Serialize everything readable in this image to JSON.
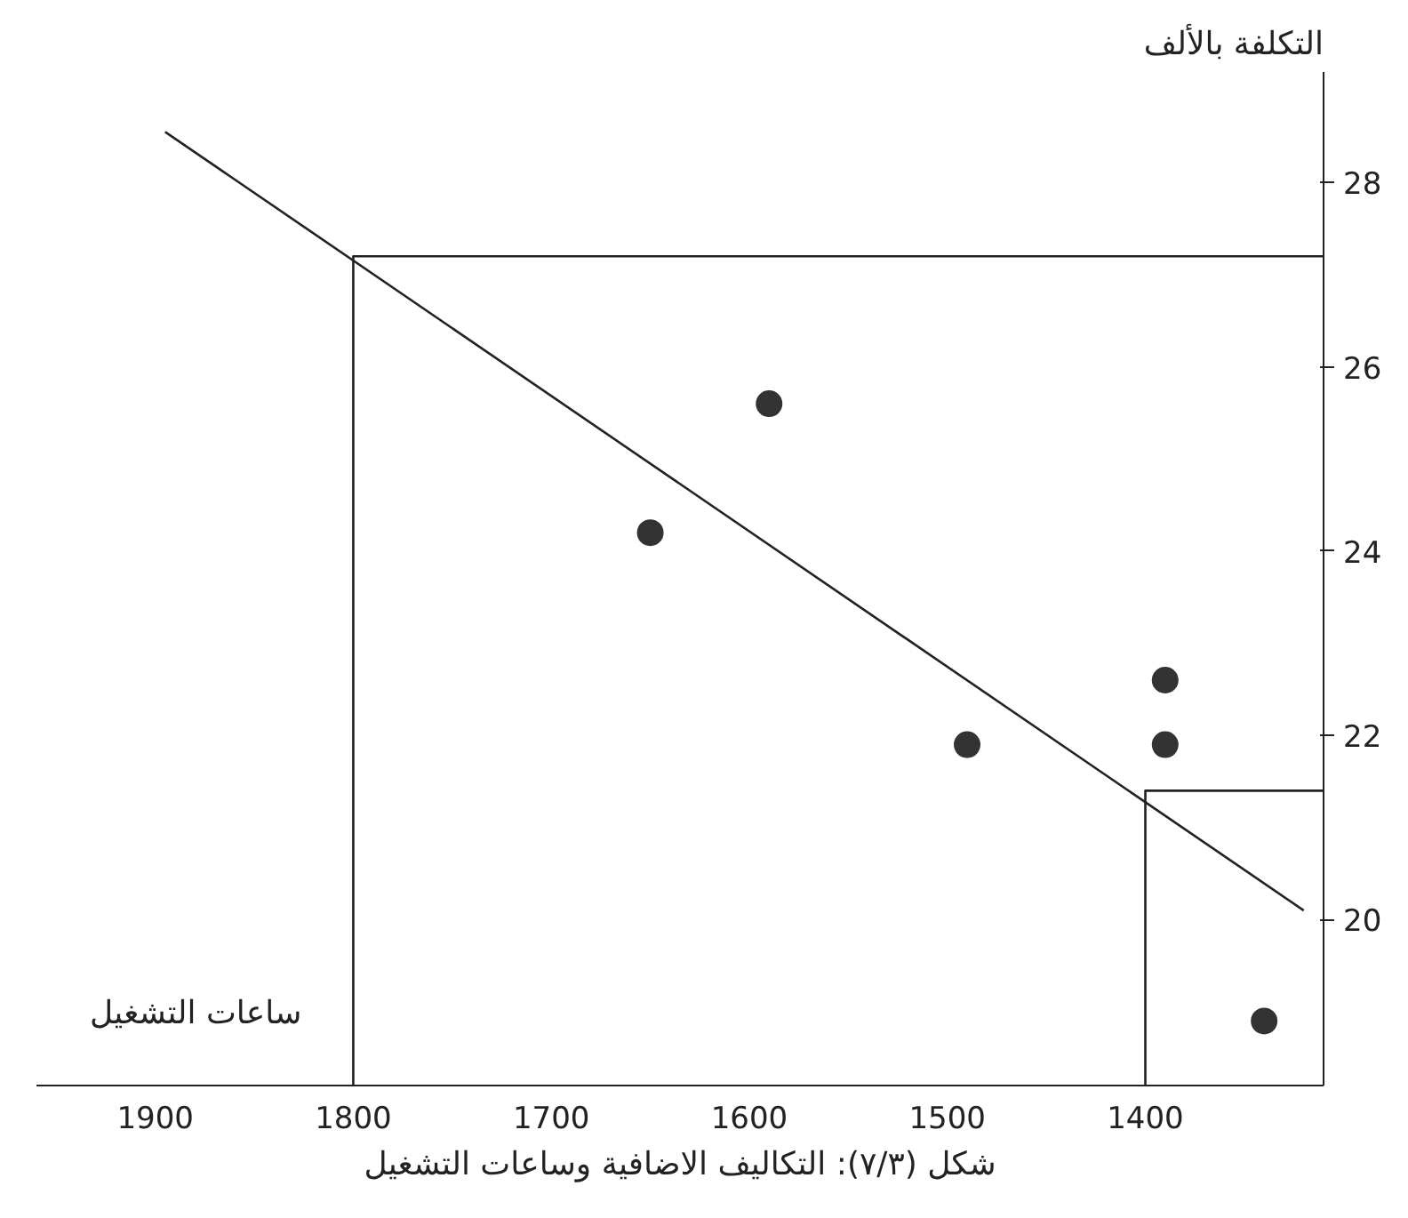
{
  "chart_data": {
    "type": "scatter",
    "title": "شكل (٧/٣): التكاليف الاضافية وساعات التشغيل",
    "xlabel": "ساعات التشغيل",
    "ylabel": "التكلفة بالألف",
    "xlim": [
      1960,
      1310
    ],
    "xticks": [
      1900,
      1800,
      1700,
      1600,
      1500,
      1400
    ],
    "ylim": [
      18.2,
      29.2
    ],
    "yticks": [
      20,
      22,
      24,
      26,
      28
    ],
    "marker": "circle",
    "grid": false,
    "series": [
      {
        "color": "#333333",
        "x": [
          1650,
          1590,
          1490,
          1390,
          1390,
          1340
        ],
        "values": [
          24.2,
          25.6,
          21.9,
          22.6,
          21.9,
          18.9
        ]
      },
      {
        "type": "line",
        "color": "#222222",
        "line_style": "solid",
        "marker": "none",
        "x": [
          1895,
          1320
        ],
        "values": [
          28.55,
          20.1
        ]
      },
      {
        "type": "line",
        "color": "#222222",
        "line_style": "solid",
        "marker": "none",
        "x": [
          1800,
          1800,
          1310
        ],
        "values": [
          18.2,
          27.2,
          27.2
        ]
      },
      {
        "type": "line",
        "color": "#222222",
        "line_style": "solid",
        "marker": "none",
        "x": [
          1400,
          1400,
          1310
        ],
        "values": [
          18.2,
          21.4,
          21.4
        ]
      }
    ]
  }
}
